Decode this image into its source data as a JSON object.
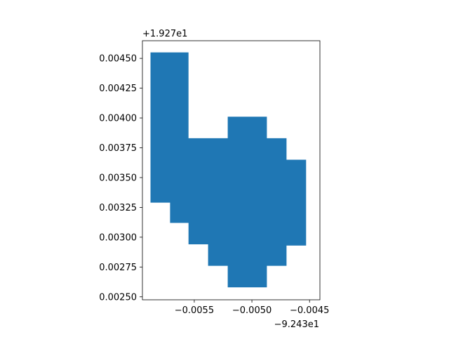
{
  "chart_data": {
    "type": "area",
    "title": "",
    "xlabel": "",
    "ylabel": "",
    "grid": false,
    "legend": "none",
    "fill_color": "#1f77b4",
    "x_offset_label": "−9.243e1",
    "y_offset_label": "+1.927e1",
    "xlim": [
      -0.00595,
      -0.00441
    ],
    "ylim": [
      0.002475,
      0.004648
    ],
    "x_ticks": [
      {
        "value": -0.0055,
        "label": "−0.0055"
      },
      {
        "value": -0.005,
        "label": "−0.0050"
      },
      {
        "value": -0.0045,
        "label": "−0.0045"
      }
    ],
    "y_ticks": [
      {
        "value": 0.0025,
        "label": "0.00250"
      },
      {
        "value": 0.00275,
        "label": "0.00275"
      },
      {
        "value": 0.003,
        "label": "0.00300"
      },
      {
        "value": 0.00325,
        "label": "0.00325"
      },
      {
        "value": 0.0035,
        "label": "0.00350"
      },
      {
        "value": 0.00375,
        "label": "0.00375"
      },
      {
        "value": 0.004,
        "label": "0.00400"
      },
      {
        "value": 0.00425,
        "label": "0.00425"
      },
      {
        "value": 0.0045,
        "label": "0.00450"
      }
    ],
    "polygon": [
      [
        -0.00588,
        0.00455
      ],
      [
        -0.00555,
        0.00455
      ],
      [
        -0.00555,
        0.00383
      ],
      [
        -0.00521,
        0.00383
      ],
      [
        -0.00521,
        0.00401
      ],
      [
        -0.00487,
        0.00401
      ],
      [
        -0.00487,
        0.00383
      ],
      [
        -0.0047,
        0.00383
      ],
      [
        -0.0047,
        0.00365
      ],
      [
        -0.00453,
        0.00365
      ],
      [
        -0.00453,
        0.00293
      ],
      [
        -0.0047,
        0.00293
      ],
      [
        -0.0047,
        0.00276
      ],
      [
        -0.00487,
        0.00276
      ],
      [
        -0.00487,
        0.00258
      ],
      [
        -0.00521,
        0.00258
      ],
      [
        -0.00521,
        0.00276
      ],
      [
        -0.00538,
        0.00276
      ],
      [
        -0.00538,
        0.00294
      ],
      [
        -0.00555,
        0.00294
      ],
      [
        -0.00555,
        0.00312
      ],
      [
        -0.00571,
        0.00312
      ],
      [
        -0.00571,
        0.00329
      ],
      [
        -0.00588,
        0.00329
      ]
    ]
  }
}
